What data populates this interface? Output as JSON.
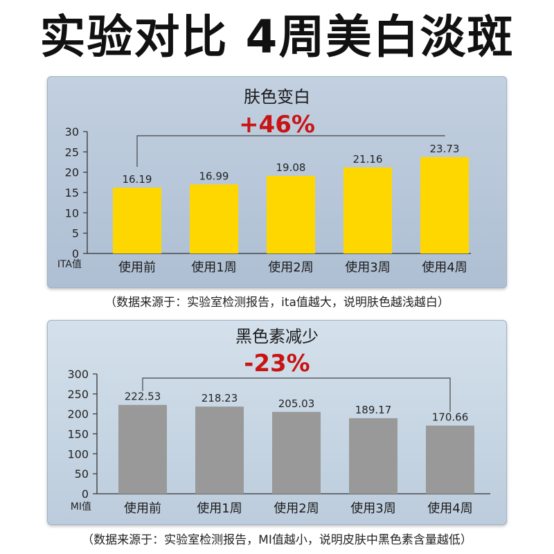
{
  "headline": "实验对比 4周美白淡斑",
  "chart_data": [
    {
      "type": "bar",
      "title": "肤色变白",
      "highlight": "+46%",
      "ylabel": "ITA值",
      "categories": [
        "使用前",
        "使用1周",
        "使用2周",
        "使用3周",
        "使用4周"
      ],
      "values": [
        16.19,
        16.99,
        19.08,
        21.16,
        23.73
      ],
      "value_labels": [
        "16.19",
        "16.99",
        "19.08",
        "21.16",
        "23.73"
      ],
      "yticks": [
        0,
        5,
        10,
        15,
        20,
        25,
        30
      ],
      "ylim": [
        0,
        30
      ],
      "bar_color": "#ffd700",
      "highlight_color": "#c81414",
      "source_note": "（数据来源于：实验室检测报告，ita值越大，说明肤色越浅越白）"
    },
    {
      "type": "bar",
      "title": "黑色素减少",
      "highlight": "-23%",
      "ylabel": "MI值",
      "categories": [
        "使用前",
        "使用1周",
        "使用2周",
        "使用3周",
        "使用4周"
      ],
      "values": [
        222.53,
        218.23,
        205.03,
        189.17,
        170.66
      ],
      "value_labels": [
        "222.53",
        "218.23",
        "205.03",
        "189.17",
        "170.66"
      ],
      "yticks": [
        0,
        50,
        100,
        150,
        200,
        250,
        300
      ],
      "ylim": [
        0,
        300
      ],
      "bar_color": "#999999",
      "highlight_color": "#c81414",
      "source_note": "（数据来源于：实验室检测报告，MI值越小，说明皮肤中黑色素含量越低）"
    }
  ]
}
